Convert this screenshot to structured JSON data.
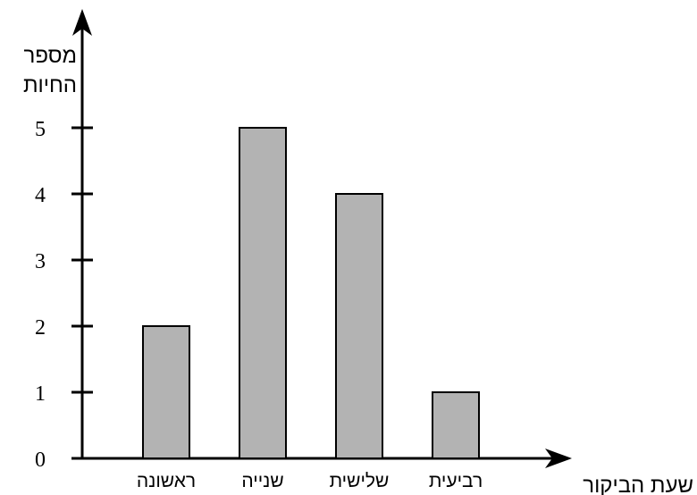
{
  "chart_data": {
    "type": "bar",
    "categories": [
      "ראשונה",
      "שנייה",
      "שלישית",
      "רביעית"
    ],
    "values": [
      2,
      5,
      4,
      1
    ],
    "title": "",
    "xlabel": "שעת הביקור",
    "ylabel_lines": [
      "מספר",
      "החיות"
    ],
    "ylim": [
      0,
      5
    ],
    "yticks": [
      0,
      1,
      2,
      3,
      4,
      5
    ],
    "grid": false,
    "bar_color": "#b3b3b3",
    "bar_edge_color": "#000000"
  }
}
